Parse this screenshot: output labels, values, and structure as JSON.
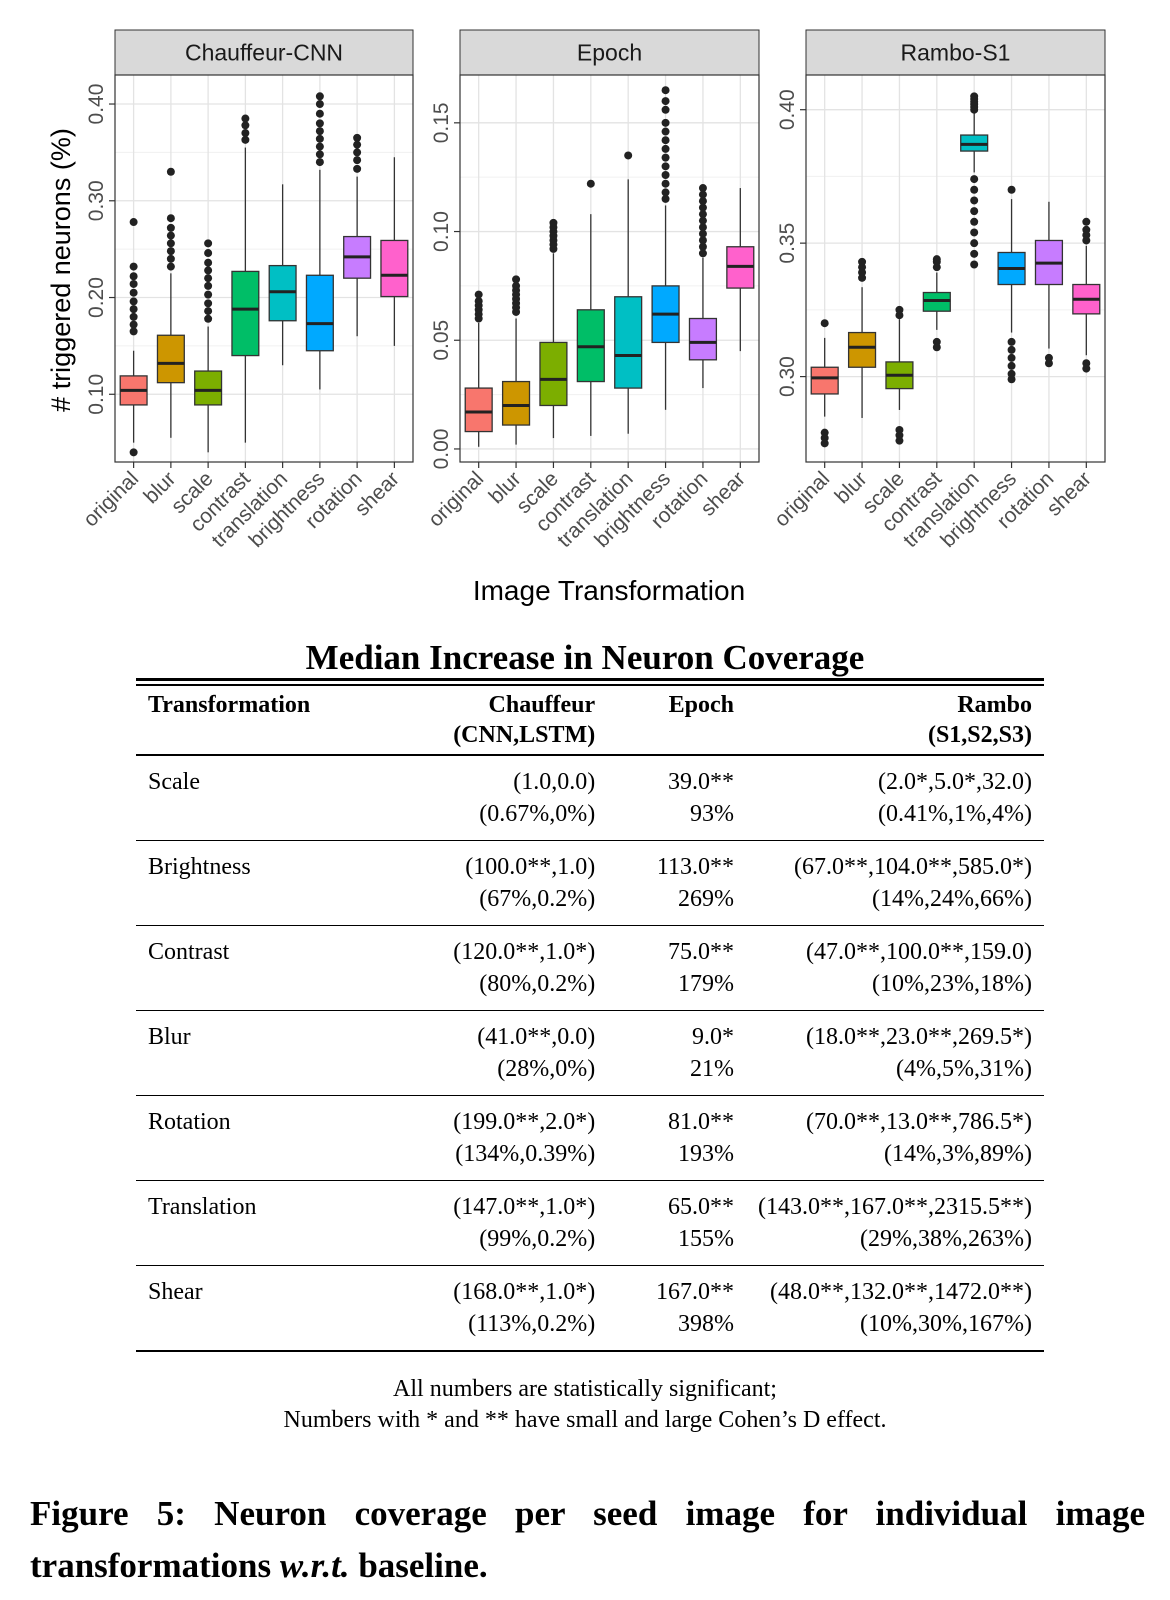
{
  "chart_data": {
    "type": "boxplot",
    "ylabel": "# triggered neurons (%)",
    "xlabel": "Image Transformation",
    "categories": [
      "original",
      "blur",
      "scale",
      "contrast",
      "translation",
      "brightness",
      "rotation",
      "shear"
    ],
    "colors": [
      "#F8766D",
      "#CD9600",
      "#7CAE00",
      "#00BE67",
      "#00BFC4",
      "#00A9FF",
      "#C77CFF",
      "#FF61CC"
    ],
    "grid": true,
    "panels": [
      {
        "title": "Chauffeur-CNN",
        "ylim": [
          0.03,
          0.43
        ],
        "yticks": [
          0.1,
          0.2,
          0.3,
          0.4
        ],
        "ytick_labels": [
          "0.10",
          "0.20",
          "0.30",
          "0.40"
        ],
        "boxes": [
          {
            "category": "original",
            "q1": 0.089,
            "median": 0.104,
            "q3": 0.119,
            "lower": 0.05,
            "upper": 0.145,
            "outliers": [
              0.04,
              0.165,
              0.172,
              0.18,
              0.188,
              0.196,
              0.205,
              0.214,
              0.222,
              0.232,
              0.278
            ]
          },
          {
            "category": "blur",
            "q1": 0.112,
            "median": 0.132,
            "q3": 0.161,
            "lower": 0.055,
            "upper": 0.225,
            "outliers": [
              0.232,
              0.24,
              0.248,
              0.256,
              0.264,
              0.272,
              0.282,
              0.33
            ]
          },
          {
            "category": "scale",
            "q1": 0.089,
            "median": 0.104,
            "q3": 0.124,
            "lower": 0.04,
            "upper": 0.17,
            "outliers": [
              0.178,
              0.186,
              0.194,
              0.203,
              0.212,
              0.22,
              0.228,
              0.236,
              0.246,
              0.256
            ]
          },
          {
            "category": "contrast",
            "q1": 0.14,
            "median": 0.188,
            "q3": 0.227,
            "lower": 0.05,
            "upper": 0.355,
            "outliers": [
              0.363,
              0.37,
              0.378,
              0.385
            ]
          },
          {
            "category": "translation",
            "q1": 0.176,
            "median": 0.206,
            "q3": 0.233,
            "lower": 0.13,
            "upper": 0.317,
            "outliers": []
          },
          {
            "category": "brightness",
            "q1": 0.145,
            "median": 0.173,
            "q3": 0.223,
            "lower": 0.105,
            "upper": 0.332,
            "outliers": [
              0.34,
              0.348,
              0.356,
              0.364,
              0.372,
              0.38,
              0.39,
              0.4,
              0.408
            ]
          },
          {
            "category": "rotation",
            "q1": 0.22,
            "median": 0.242,
            "q3": 0.263,
            "lower": 0.16,
            "upper": 0.325,
            "outliers": [
              0.333,
              0.342,
              0.35,
              0.358,
              0.365
            ]
          },
          {
            "category": "shear",
            "q1": 0.201,
            "median": 0.223,
            "q3": 0.259,
            "lower": 0.15,
            "upper": 0.345,
            "outliers": []
          }
        ]
      },
      {
        "title": "Epoch",
        "ylim": [
          -0.006,
          0.172
        ],
        "yticks": [
          0.0,
          0.05,
          0.1,
          0.15
        ],
        "ytick_labels": [
          "0.00",
          "0.05",
          "0.10",
          "0.15"
        ],
        "boxes": [
          {
            "category": "original",
            "q1": 0.008,
            "median": 0.017,
            "q3": 0.028,
            "lower": 0.001,
            "upper": 0.058,
            "outliers": [
              0.06,
              0.062,
              0.064,
              0.066,
              0.068,
              0.071
            ]
          },
          {
            "category": "blur",
            "q1": 0.011,
            "median": 0.02,
            "q3": 0.031,
            "lower": 0.002,
            "upper": 0.06,
            "outliers": [
              0.063,
              0.065,
              0.067,
              0.069,
              0.071,
              0.073,
              0.075,
              0.078
            ]
          },
          {
            "category": "scale",
            "q1": 0.02,
            "median": 0.032,
            "q3": 0.049,
            "lower": 0.005,
            "upper": 0.09,
            "outliers": [
              0.092,
              0.094,
              0.096,
              0.098,
              0.1,
              0.102,
              0.104
            ]
          },
          {
            "category": "contrast",
            "q1": 0.031,
            "median": 0.047,
            "q3": 0.064,
            "lower": 0.006,
            "upper": 0.108,
            "outliers": [
              0.122
            ]
          },
          {
            "category": "translation",
            "q1": 0.028,
            "median": 0.043,
            "q3": 0.07,
            "lower": 0.007,
            "upper": 0.124,
            "outliers": [
              0.135
            ]
          },
          {
            "category": "brightness",
            "q1": 0.049,
            "median": 0.062,
            "q3": 0.075,
            "lower": 0.018,
            "upper": 0.112,
            "outliers": [
              0.115,
              0.118,
              0.122,
              0.126,
              0.13,
              0.134,
              0.138,
              0.142,
              0.146,
              0.15,
              0.156,
              0.16,
              0.165
            ]
          },
          {
            "category": "rotation",
            "q1": 0.041,
            "median": 0.049,
            "q3": 0.06,
            "lower": 0.028,
            "upper": 0.088,
            "outliers": [
              0.09,
              0.093,
              0.096,
              0.099,
              0.102,
              0.105,
              0.108,
              0.111,
              0.114,
              0.117,
              0.12
            ]
          },
          {
            "category": "shear",
            "q1": 0.074,
            "median": 0.084,
            "q3": 0.093,
            "lower": 0.045,
            "upper": 0.12,
            "outliers": []
          }
        ]
      },
      {
        "title": "Rambo-S1",
        "ylim": [
          0.268,
          0.413
        ],
        "yticks": [
          0.3,
          0.35,
          0.4
        ],
        "ytick_labels": [
          "0.30",
          "0.35",
          "0.40"
        ],
        "boxes": [
          {
            "category": "original",
            "q1": 0.2935,
            "median": 0.2995,
            "q3": 0.3035,
            "lower": 0.285,
            "upper": 0.3145,
            "outliers": [
              0.32,
              0.279,
              0.277,
              0.275
            ]
          },
          {
            "category": "blur",
            "q1": 0.3035,
            "median": 0.311,
            "q3": 0.3165,
            "lower": 0.2845,
            "upper": 0.3335,
            "outliers": [
              0.337,
              0.339,
              0.341,
              0.343
            ]
          },
          {
            "category": "scale",
            "q1": 0.2955,
            "median": 0.3005,
            "q3": 0.3055,
            "lower": 0.2875,
            "upper": 0.3215,
            "outliers": [
              0.323,
              0.325,
              0.28,
              0.278,
              0.276
            ]
          },
          {
            "category": "contrast",
            "q1": 0.3245,
            "median": 0.3285,
            "q3": 0.3315,
            "lower": 0.3175,
            "upper": 0.339,
            "outliers": [
              0.341,
              0.343,
              0.344,
              0.313,
              0.311
            ]
          },
          {
            "category": "translation",
            "q1": 0.3845,
            "median": 0.387,
            "q3": 0.3905,
            "lower": 0.3765,
            "upper": 0.399,
            "outliers": [
              0.4,
              0.401,
              0.402,
              0.403,
              0.404,
              0.405,
              0.374,
              0.37,
              0.366,
              0.362,
              0.358,
              0.354,
              0.35,
              0.346,
              0.342
            ]
          },
          {
            "category": "brightness",
            "q1": 0.3345,
            "median": 0.3405,
            "q3": 0.3465,
            "lower": 0.3165,
            "upper": 0.3665,
            "outliers": [
              0.37,
              0.313,
              0.31,
              0.307,
              0.304,
              0.301,
              0.299
            ]
          },
          {
            "category": "rotation",
            "q1": 0.3345,
            "median": 0.3425,
            "q3": 0.351,
            "lower": 0.3105,
            "upper": 0.3655,
            "outliers": [
              0.307,
              0.305
            ]
          },
          {
            "category": "shear",
            "q1": 0.3235,
            "median": 0.329,
            "q3": 0.3345,
            "lower": 0.308,
            "upper": 0.349,
            "outliers": [
              0.351,
              0.353,
              0.355,
              0.358,
              0.305,
              0.303
            ]
          }
        ]
      }
    ]
  },
  "table": {
    "title": "Median Increase in Neuron Coverage",
    "headers": {
      "transformation": "Transformation",
      "chauffeur": "Chauffeur",
      "chauffeur_sub": "(CNN,LSTM)",
      "epoch": "Epoch",
      "rambo": "Rambo",
      "rambo_sub": "(S1,S2,S3)"
    },
    "rows": [
      {
        "name": "Scale",
        "chauffeur": [
          "(1.0,0.0)",
          "(0.67%,0%)"
        ],
        "epoch": [
          "39.0**",
          "93%"
        ],
        "rambo": [
          "(2.0*,5.0*,32.0)",
          "(0.41%,1%,4%)"
        ]
      },
      {
        "name": "Brightness",
        "chauffeur": [
          "(100.0**,1.0)",
          "(67%,0.2%)"
        ],
        "epoch": [
          "113.0**",
          "269%"
        ],
        "rambo": [
          "(67.0**,104.0**,585.0*)",
          "(14%,24%,66%)"
        ]
      },
      {
        "name": "Contrast",
        "chauffeur": [
          "(120.0**,1.0*)",
          "(80%,0.2%)"
        ],
        "epoch": [
          "75.0**",
          "179%"
        ],
        "rambo": [
          "(47.0**,100.0**,159.0)",
          "(10%,23%,18%)"
        ]
      },
      {
        "name": "Blur",
        "chauffeur": [
          "(41.0**,0.0)",
          "(28%,0%)"
        ],
        "epoch": [
          "9.0*",
          "21%"
        ],
        "rambo": [
          "(18.0**,23.0**,269.5*)",
          "(4%,5%,31%)"
        ]
      },
      {
        "name": "Rotation",
        "chauffeur": [
          "(199.0**,2.0*)",
          "(134%,0.39%)"
        ],
        "epoch": [
          "81.0**",
          "193%"
        ],
        "rambo": [
          "(70.0**,13.0**,786.5*)",
          "(14%,3%,89%)"
        ]
      },
      {
        "name": "Translation",
        "chauffeur": [
          "(147.0**,1.0*)",
          "(99%,0.2%)"
        ],
        "epoch": [
          "65.0**",
          "155%"
        ],
        "rambo": [
          "(143.0**,167.0**,2315.5**)",
          "(29%,38%,263%)"
        ]
      },
      {
        "name": "Shear",
        "chauffeur": [
          "(168.0**,1.0*)",
          "(113%,0.2%)"
        ],
        "epoch": [
          "167.0**",
          "398%"
        ],
        "rambo": [
          "(48.0**,132.0**,1472.0**)",
          "(10%,30%,167%)"
        ]
      }
    ],
    "notes": [
      "All numbers are statistically significant;",
      "Numbers with * and ** have small and large Cohen’s D effect."
    ]
  },
  "caption": {
    "lead": "Figure 5: Neuron coverage per seed image for individual image transformations ",
    "italic": "w.r.t.",
    "tail": " baseline."
  }
}
